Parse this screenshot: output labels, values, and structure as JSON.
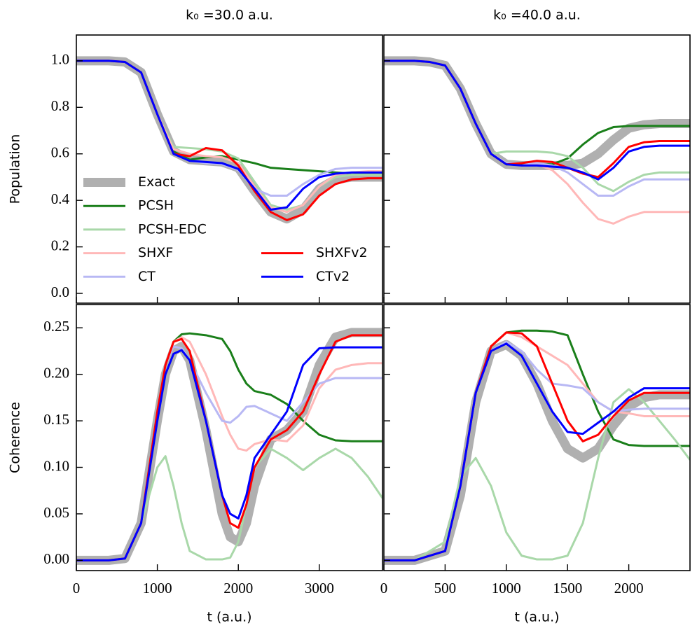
{
  "chart_data": [
    {
      "type": "line",
      "title": "k₀ =30.0 a.u.",
      "ylabel": "Population",
      "legend": "center left",
      "xlim": [
        0,
        3780
      ],
      "ylim": [
        -0.042,
        1.111
      ],
      "xticks": [
        0,
        1000,
        2000,
        3000
      ],
      "yticks": [
        {
          "value": 0,
          "label": "0.0"
        },
        0.2,
        0.4,
        0.6,
        0.8,
        {
          "value": 1,
          "label": "1.0"
        }
      ],
      "x": [
        0,
        200,
        400,
        600,
        800,
        1000,
        1200,
        1400,
        1600,
        1800,
        2000,
        2200,
        2400,
        2600,
        2800,
        3000,
        3200,
        3400,
        3600,
        3780
      ],
      "series": [
        {
          "name": "Exact",
          "color": "#b0b0b0",
          "values": [
            1,
            1,
            1,
            0.995,
            0.95,
            0.77,
            0.61,
            0.575,
            0.57,
            0.565,
            0.54,
            0.44,
            0.35,
            0.32,
            0.36,
            0.45,
            0.49,
            0.5,
            0.5,
            0.5
          ]
        },
        {
          "name": "PCSH",
          "color": "#1a7f1a",
          "values": [
            1,
            1,
            1,
            0.995,
            0.95,
            0.77,
            0.61,
            0.575,
            0.585,
            0.59,
            0.575,
            0.56,
            0.54,
            0.535,
            0.53,
            0.525,
            0.52,
            0.515,
            0.515,
            0.515
          ]
        },
        {
          "name": "PCSH-EDC",
          "color": "#a9d8a9",
          "values": [
            1,
            1,
            1,
            0.995,
            0.95,
            0.77,
            0.63,
            0.625,
            0.62,
            0.61,
            0.58,
            0.48,
            0.38,
            0.36,
            0.38,
            0.46,
            0.5,
            0.51,
            0.51,
            0.51
          ]
        },
        {
          "name": "SHXF",
          "color": "#ffb8b8",
          "values": [
            1,
            1,
            1,
            0.995,
            0.95,
            0.77,
            0.62,
            0.6,
            0.59,
            0.585,
            0.56,
            0.46,
            0.37,
            0.35,
            0.38,
            0.46,
            0.51,
            0.52,
            0.525,
            0.525
          ]
        },
        {
          "name": "CT",
          "color": "#b8b8f4",
          "values": [
            1,
            1,
            1,
            0.995,
            0.95,
            0.77,
            0.6,
            0.57,
            0.56,
            0.555,
            0.53,
            0.45,
            0.42,
            0.42,
            0.47,
            0.51,
            0.535,
            0.54,
            0.54,
            0.54
          ]
        },
        {
          "name": "SHXFv2",
          "color": "#ff0000",
          "values": [
            1,
            1,
            1,
            0.995,
            0.95,
            0.77,
            0.6,
            0.59,
            0.625,
            0.615,
            0.55,
            0.44,
            0.35,
            0.315,
            0.34,
            0.42,
            0.47,
            0.49,
            0.495,
            0.495
          ]
        },
        {
          "name": "CTv2",
          "color": "#0000ff",
          "values": [
            1,
            1,
            1,
            0.995,
            0.95,
            0.77,
            0.6,
            0.57,
            0.565,
            0.56,
            0.535,
            0.45,
            0.36,
            0.37,
            0.45,
            0.5,
            0.515,
            0.52,
            0.52,
            0.52
          ]
        }
      ]
    },
    {
      "type": "line",
      "title": "k₀ =40.0 a.u.",
      "xlim": [
        0,
        2500
      ],
      "ylim": [
        -0.042,
        1.111
      ],
      "xticks": [
        0,
        500,
        1000,
        1500,
        2000
      ],
      "yticks": [
        0,
        0.2,
        0.4,
        0.6,
        0.8,
        1
      ],
      "x": [
        0,
        125,
        250,
        375,
        500,
        625,
        750,
        875,
        1000,
        1125,
        1250,
        1375,
        1500,
        1625,
        1750,
        1875,
        2000,
        2125,
        2250,
        2375,
        2500
      ],
      "series": [
        {
          "color": "#b0b0b0",
          "values": [
            1,
            1,
            1,
            0.995,
            0.98,
            0.88,
            0.73,
            0.6,
            0.555,
            0.55,
            0.55,
            0.55,
            0.55,
            0.56,
            0.6,
            0.66,
            0.71,
            0.725,
            0.73,
            0.73,
            0.73
          ]
        },
        {
          "color": "#1a7f1a",
          "values": [
            1,
            1,
            1,
            0.995,
            0.98,
            0.88,
            0.73,
            0.6,
            0.555,
            0.555,
            0.555,
            0.555,
            0.58,
            0.64,
            0.69,
            0.715,
            0.72,
            0.72,
            0.72,
            0.72,
            0.72
          ]
        },
        {
          "color": "#a9d8a9",
          "values": [
            1,
            1,
            1,
            0.995,
            0.98,
            0.88,
            0.73,
            0.6,
            0.61,
            0.61,
            0.61,
            0.605,
            0.59,
            0.54,
            0.47,
            0.44,
            0.48,
            0.51,
            0.52,
            0.52,
            0.52
          ]
        },
        {
          "color": "#ffb8b8",
          "values": [
            1,
            1,
            1,
            0.995,
            0.98,
            0.88,
            0.73,
            0.6,
            0.56,
            0.56,
            0.555,
            0.53,
            0.47,
            0.39,
            0.32,
            0.3,
            0.33,
            0.35,
            0.35,
            0.35,
            0.35
          ]
        },
        {
          "color": "#b8b8f4",
          "values": [
            1,
            1,
            1,
            0.995,
            0.98,
            0.88,
            0.73,
            0.6,
            0.56,
            0.56,
            0.56,
            0.55,
            0.52,
            0.47,
            0.42,
            0.42,
            0.46,
            0.49,
            0.49,
            0.49,
            0.49
          ]
        },
        {
          "color": "#ff0000",
          "values": [
            1,
            1,
            1,
            0.995,
            0.98,
            0.88,
            0.73,
            0.6,
            0.555,
            0.56,
            0.57,
            0.565,
            0.54,
            0.515,
            0.5,
            0.56,
            0.63,
            0.65,
            0.655,
            0.655,
            0.655
          ]
        },
        {
          "color": "#0000ff",
          "values": [
            1,
            1,
            1,
            0.995,
            0.98,
            0.88,
            0.73,
            0.6,
            0.555,
            0.55,
            0.55,
            0.545,
            0.54,
            0.52,
            0.49,
            0.54,
            0.61,
            0.63,
            0.635,
            0.635,
            0.635
          ]
        }
      ]
    },
    {
      "type": "line",
      "ylabel": "Coherence",
      "xlabel": "t (a.u.)",
      "xlim": [
        0,
        3780
      ],
      "ylim": [
        -0.011,
        0.275
      ],
      "xticks": [
        0,
        1000,
        2000,
        3000
      ],
      "yticks": [
        {
          "value": 0,
          "label": "0.00"
        },
        0.05,
        {
          "value": 0.1,
          "label": "0.10"
        },
        0.15,
        {
          "value": 0.2,
          "label": "0.20"
        },
        0.25
      ],
      "x": [
        0,
        400,
        600,
        800,
        1000,
        1100,
        1200,
        1300,
        1400,
        1600,
        1800,
        1900,
        2000,
        2100,
        2200,
        2400,
        2600,
        2800,
        3000,
        3200,
        3400,
        3600,
        3780
      ],
      "series": [
        {
          "color": "#b0b0b0",
          "values": [
            0,
            0,
            0.002,
            0.04,
            0.15,
            0.2,
            0.225,
            0.23,
            0.215,
            0.14,
            0.05,
            0.025,
            0.02,
            0.04,
            0.08,
            0.13,
            0.14,
            0.16,
            0.21,
            0.24,
            0.245,
            0.245,
            0.245
          ]
        },
        {
          "color": "#1a7f1a",
          "values": [
            0,
            0,
            0.002,
            0.04,
            0.16,
            0.21,
            0.235,
            0.243,
            0.244,
            0.242,
            0.238,
            0.225,
            0.205,
            0.19,
            0.182,
            0.178,
            0.168,
            0.15,
            0.135,
            0.129,
            0.128,
            0.128,
            0.128
          ]
        },
        {
          "color": "#a9d8a9",
          "values": [
            0,
            0,
            0.002,
            0.04,
            0.1,
            0.112,
            0.08,
            0.04,
            0.01,
            0.001,
            0.001,
            0.003,
            0.02,
            0.06,
            0.1,
            0.12,
            0.11,
            0.097,
            0.11,
            0.12,
            0.11,
            0.09,
            0.067
          ]
        },
        {
          "color": "#ffb8b8",
          "values": [
            0,
            0,
            0.002,
            0.04,
            0.16,
            0.21,
            0.235,
            0.24,
            0.235,
            0.2,
            0.155,
            0.135,
            0.12,
            0.118,
            0.125,
            0.13,
            0.128,
            0.145,
            0.185,
            0.205,
            0.21,
            0.212,
            0.212
          ]
        },
        {
          "color": "#b8b8f4",
          "values": [
            0,
            0,
            0.002,
            0.04,
            0.16,
            0.21,
            0.23,
            0.228,
            0.215,
            0.18,
            0.15,
            0.148,
            0.155,
            0.165,
            0.166,
            0.158,
            0.15,
            0.17,
            0.19,
            0.196,
            0.196,
            0.196,
            0.196
          ]
        },
        {
          "color": "#ff0000",
          "values": [
            0,
            0,
            0.002,
            0.04,
            0.16,
            0.21,
            0.235,
            0.238,
            0.225,
            0.15,
            0.07,
            0.04,
            0.035,
            0.06,
            0.1,
            0.13,
            0.14,
            0.16,
            0.2,
            0.235,
            0.242,
            0.242,
            0.242
          ]
        },
        {
          "color": "#0000ff",
          "values": [
            0,
            0,
            0.002,
            0.04,
            0.15,
            0.2,
            0.222,
            0.226,
            0.215,
            0.15,
            0.07,
            0.05,
            0.045,
            0.07,
            0.11,
            0.135,
            0.16,
            0.21,
            0.228,
            0.229,
            0.229,
            0.229,
            0.229
          ]
        }
      ]
    },
    {
      "type": "line",
      "xlabel": "t (a.u.)",
      "xlim": [
        0,
        2500
      ],
      "ylim": [
        -0.011,
        0.275
      ],
      "xticks": [
        0,
        500,
        1000,
        1500,
        2000
      ],
      "yticks": [
        0,
        0.05,
        0.1,
        0.15,
        0.2,
        0.25
      ],
      "x": [
        0,
        250,
        500,
        625,
        750,
        875,
        1000,
        1125,
        1250,
        1375,
        1500,
        1625,
        1750,
        1875,
        2000,
        2125,
        2250,
        2375,
        2500
      ],
      "series": [
        {
          "color": "#b0b0b0",
          "values": [
            0,
            0,
            0.01,
            0.07,
            0.17,
            0.225,
            0.232,
            0.22,
            0.19,
            0.15,
            0.12,
            0.11,
            0.12,
            0.145,
            0.165,
            0.175,
            0.178,
            0.178,
            0.178
          ]
        },
        {
          "color": "#1a7f1a",
          "values": [
            0,
            0,
            0.01,
            0.08,
            0.18,
            0.23,
            0.245,
            0.247,
            0.247,
            0.246,
            0.242,
            0.2,
            0.16,
            0.13,
            0.124,
            0.123,
            0.123,
            0.123,
            0.123
          ]
        },
        {
          "color": "#a9d8a9",
          "values": [
            0,
            0,
            0.02,
            0.09,
            0.11,
            0.08,
            0.03,
            0.005,
            0.001,
            0.001,
            0.005,
            0.04,
            0.11,
            0.17,
            0.184,
            0.17,
            0.15,
            0.13,
            0.108
          ]
        },
        {
          "color": "#ffb8b8",
          "values": [
            0,
            0,
            0.01,
            0.08,
            0.18,
            0.23,
            0.245,
            0.24,
            0.23,
            0.22,
            0.21,
            0.19,
            0.17,
            0.16,
            0.158,
            0.155,
            0.155,
            0.155,
            0.155
          ]
        },
        {
          "color": "#b8b8f4",
          "values": [
            0,
            0,
            0.01,
            0.08,
            0.18,
            0.225,
            0.235,
            0.225,
            0.205,
            0.19,
            0.188,
            0.185,
            0.17,
            0.16,
            0.162,
            0.163,
            0.163,
            0.163,
            0.163
          ]
        },
        {
          "color": "#ff0000",
          "values": [
            0,
            0,
            0.01,
            0.08,
            0.18,
            0.23,
            0.245,
            0.244,
            0.23,
            0.19,
            0.15,
            0.128,
            0.135,
            0.155,
            0.172,
            0.18,
            0.18,
            0.18,
            0.18
          ]
        },
        {
          "color": "#0000ff",
          "values": [
            0,
            0,
            0.01,
            0.08,
            0.18,
            0.225,
            0.233,
            0.22,
            0.19,
            0.16,
            0.138,
            0.136,
            0.148,
            0.16,
            0.175,
            0.185,
            0.185,
            0.185,
            0.185
          ]
        }
      ]
    }
  ]
}
